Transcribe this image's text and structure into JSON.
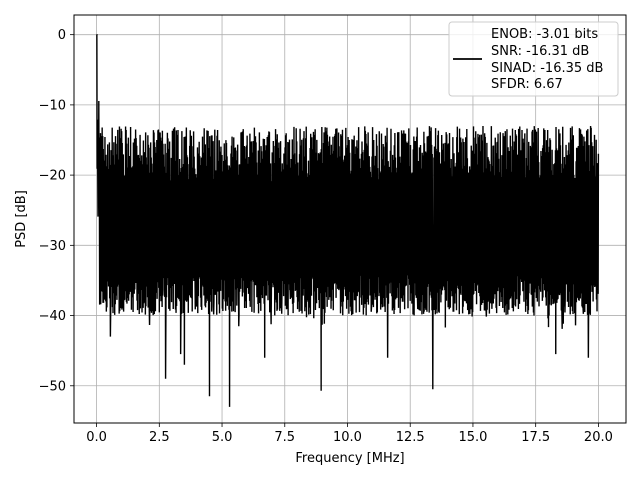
{
  "chart_data": {
    "type": "line",
    "title": "",
    "xlabel": "Frequency [MHz]",
    "ylabel": "PSD [dB]",
    "xlim": [
      -0.9,
      21.1
    ],
    "ylim": [
      -55.3,
      2.8
    ],
    "xticks": [
      0.0,
      2.5,
      5.0,
      7.5,
      10.0,
      12.5,
      15.0,
      17.5,
      20.0
    ],
    "xtick_labels": [
      "0.0",
      "2.5",
      "5.0",
      "7.5",
      "10.0",
      "12.5",
      "15.0",
      "17.5",
      "20.0"
    ],
    "yticks": [
      0,
      -10,
      -20,
      -30,
      -40,
      -50
    ],
    "ytick_labels": [
      "0",
      "−10",
      "−20",
      "−30",
      "−40",
      "−50"
    ],
    "grid": true,
    "legend_position": "top-right",
    "line_color": "#000000",
    "series": [
      {
        "name": "ENOB: -3.01 bits\nSNR: -16.31 dB\nSINAD: -16.35 dB\nSFDR: 6.67",
        "description_points": {
          "x_range": [
            0.0,
            20.0
          ],
          "noise_band_top_typical": -17,
          "noise_band_bottom_typical": -34,
          "peak_at_dc": 0.0,
          "notable_dips": [
            {
              "x": 0.55,
              "y": -43
            },
            {
              "x": 2.75,
              "y": -49
            },
            {
              "x": 3.35,
              "y": -45.5
            },
            {
              "x": 3.5,
              "y": -47
            },
            {
              "x": 4.5,
              "y": -51.5
            },
            {
              "x": 5.3,
              "y": -53
            },
            {
              "x": 6.7,
              "y": -46
            },
            {
              "x": 8.95,
              "y": -50.7
            },
            {
              "x": 11.6,
              "y": -46
            },
            {
              "x": 13.4,
              "y": -50.5
            },
            {
              "x": 18.3,
              "y": -45.5
            },
            {
              "x": 19.6,
              "y": -46
            }
          ]
        }
      }
    ],
    "legend_lines": [
      "ENOB: -3.01 bits",
      "SNR: -16.31 dB",
      "SINAD: -16.35 dB",
      "SFDR: 6.67"
    ]
  }
}
